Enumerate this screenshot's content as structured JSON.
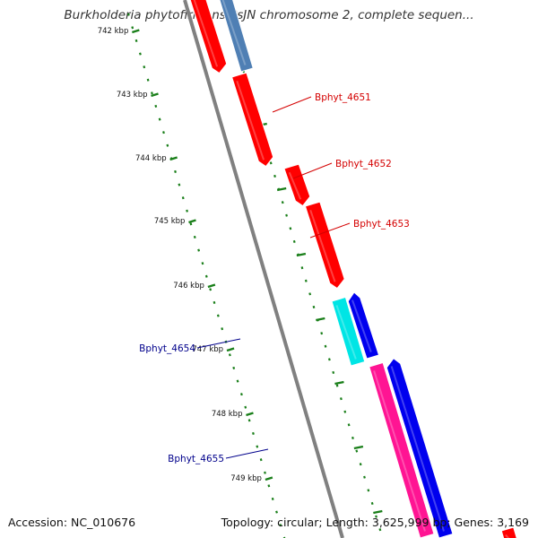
{
  "title": "Burkholderia phytofirmans PsJN chromosome 2, complete sequen...",
  "footer": {
    "accession": "Accession: NC_010676",
    "summary": "Topology: circular; Length: 3,625,999 bp; Genes: 3,169"
  },
  "ticks": [
    "742 kbp",
    "743 kbp",
    "744 kbp",
    "745 kbp",
    "746 kbp",
    "747 kbp",
    "748 kbp",
    "749 kbp"
  ],
  "gene_labels": [
    {
      "name": "Bphyt_4651",
      "color": "#d40000"
    },
    {
      "name": "Bphyt_4652",
      "color": "#d40000"
    },
    {
      "name": "Bphyt_4653",
      "color": "#d40000"
    },
    {
      "name": "Bphyt_4654",
      "color": "#00008b"
    },
    {
      "name": "Bphyt_4655",
      "color": "#00008b"
    }
  ],
  "colors": {
    "forward_cds": "#ff0000",
    "reverse_cds": "#0000ee",
    "steelblue_feature": "#4f7fb4",
    "cyan_feature": "#00e5e5",
    "pink_feature": "#ff1493",
    "backbone": "#808080",
    "scale_dots": "#1a7f1a"
  }
}
